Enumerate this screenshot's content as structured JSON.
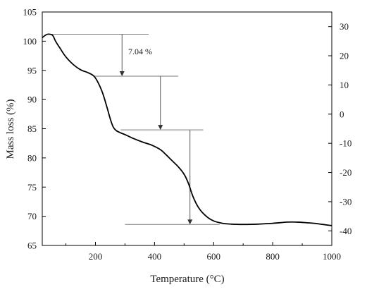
{
  "chart_data": {
    "type": "line",
    "title": "",
    "xlabel": "Temperature (°C)",
    "ylabel": "Mass loss (%)",
    "xlim": [
      20,
      1000
    ],
    "ylim": [
      65,
      105
    ],
    "y2lim": [
      -45,
      35
    ],
    "x_ticks": [
      200,
      400,
      600,
      800,
      1000
    ],
    "y_ticks": [
      65,
      70,
      75,
      80,
      85,
      90,
      95,
      100,
      105
    ],
    "y2_ticks": [
      -40,
      -30,
      -20,
      -10,
      0,
      10,
      20,
      30
    ],
    "grid": false,
    "series": [
      {
        "x": [
          20,
          30,
          40,
          55,
          65,
          80,
          100,
          125,
          150,
          175,
          195,
          210,
          225,
          240,
          250,
          260,
          270,
          285,
          300,
          330,
          360,
          390,
          420,
          440,
          460,
          480,
          500,
          515,
          530,
          550,
          575,
          600,
          630,
          660,
          700,
          750,
          800,
          850,
          880,
          900,
          940,
          970,
          1000
        ],
        "y": [
          100.6,
          101.0,
          101.2,
          101.0,
          100.0,
          98.8,
          97.3,
          96.0,
          95.1,
          94.6,
          94.0,
          92.8,
          91.0,
          88.5,
          86.7,
          85.3,
          84.7,
          84.3,
          84.0,
          83.3,
          82.7,
          82.2,
          81.4,
          80.5,
          79.5,
          78.5,
          77.2,
          75.6,
          73.4,
          71.4,
          70.0,
          69.2,
          68.8,
          68.65,
          68.6,
          68.65,
          68.8,
          69.0,
          69.0,
          68.95,
          68.8,
          68.6,
          68.4
        ]
      }
    ],
    "annotations": {
      "label": "7.04 %",
      "steps": [
        {
          "x_from": 40,
          "x_to": 380,
          "y": 101.2,
          "arrow_x": 290,
          "arrow_to": 94.0
        },
        {
          "x_from": 195,
          "x_to": 480,
          "y": 94.0,
          "arrow_x": 420,
          "arrow_to": 84.8
        },
        {
          "x_from": 285,
          "x_to": 565,
          "y": 84.8,
          "arrow_x": 520,
          "arrow_to": 68.6
        },
        {
          "x_from": 300,
          "x_to": 620,
          "y": 68.6
        }
      ]
    }
  }
}
